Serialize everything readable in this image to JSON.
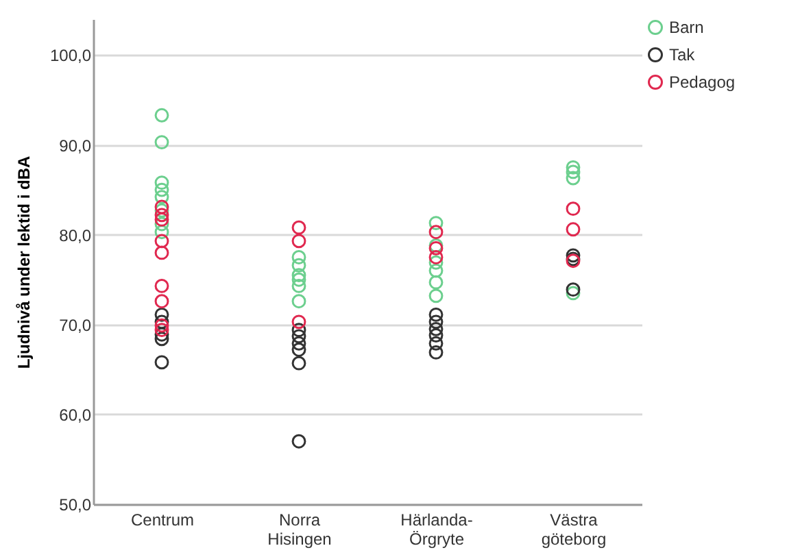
{
  "chart_data": {
    "type": "scatter",
    "ylabel": "Ljudnivå under lektid i dBA",
    "categories": [
      "Centrum",
      "Norra Hisingen",
      "Härlanda-Örgryte",
      "Västra göteborg"
    ],
    "ylim": [
      50,
      104
    ],
    "yticks": [
      {
        "value": 50,
        "label": "50,0"
      },
      {
        "value": 60,
        "label": "60,0"
      },
      {
        "value": 70,
        "label": "70,0"
      },
      {
        "value": 80,
        "label": "80,0"
      },
      {
        "value": 90,
        "label": "90,0"
      },
      {
        "value": 100,
        "label": "100,0"
      }
    ],
    "grid": "y",
    "legend": "right",
    "marker": "circle",
    "series": [
      {
        "name": "Barn",
        "color": "#6ccf8e",
        "x": [
          "Centrum",
          "Centrum",
          "Centrum",
          "Centrum",
          "Centrum",
          "Centrum",
          "Centrum",
          "Centrum",
          "Norra Hisingen",
          "Norra Hisingen",
          "Norra Hisingen",
          "Norra Hisingen",
          "Norra Hisingen",
          "Norra Hisingen",
          "Härlanda-Örgryte",
          "Härlanda-Örgryte",
          "Härlanda-Örgryte",
          "Härlanda-Örgryte",
          "Härlanda-Örgryte",
          "Härlanda-Örgryte",
          "Västra göteborg",
          "Västra göteborg",
          "Västra göteborg",
          "Västra göteborg"
        ],
        "values": [
          93.3,
          90.3,
          85.8,
          85.0,
          84.2,
          82.7,
          81.2,
          80.3,
          77.5,
          76.6,
          75.5,
          75.0,
          74.3,
          72.6,
          81.3,
          78.8,
          76.9,
          76.0,
          74.7,
          73.2,
          87.5,
          87.0,
          86.3,
          73.5
        ]
      },
      {
        "name": "Tak",
        "color": "#333333",
        "x": [
          "Centrum",
          "Centrum",
          "Centrum",
          "Centrum",
          "Centrum",
          "Norra Hisingen",
          "Norra Hisingen",
          "Norra Hisingen",
          "Norra Hisingen",
          "Norra Hisingen",
          "Norra Hisingen",
          "Härlanda-Örgryte",
          "Härlanda-Örgryte",
          "Härlanda-Örgryte",
          "Härlanda-Örgryte",
          "Härlanda-Örgryte",
          "Härlanda-Örgryte",
          "Västra göteborg",
          "Västra göteborg",
          "Västra göteborg"
        ],
        "values": [
          71.1,
          70.3,
          68.9,
          68.4,
          65.8,
          69.4,
          68.7,
          67.9,
          67.2,
          65.7,
          57.0,
          71.1,
          70.3,
          69.5,
          68.8,
          67.9,
          66.9,
          77.7,
          77.3,
          73.9
        ]
      },
      {
        "name": "Pedagog",
        "color": "#e0284f",
        "x": [
          "Centrum",
          "Centrum",
          "Centrum",
          "Centrum",
          "Centrum",
          "Centrum",
          "Centrum",
          "Centrum",
          "Centrum",
          "Norra Hisingen",
          "Norra Hisingen",
          "Norra Hisingen",
          "Härlanda-Örgryte",
          "Härlanda-Örgryte",
          "Härlanda-Örgryte",
          "Västra göteborg",
          "Västra göteborg",
          "Västra göteborg"
        ],
        "values": [
          83.1,
          82.2,
          81.7,
          79.3,
          78.0,
          74.3,
          72.6,
          69.9,
          69.4,
          80.8,
          79.3,
          70.3,
          80.3,
          78.5,
          77.5,
          82.9,
          80.6,
          77.1
        ]
      }
    ]
  }
}
